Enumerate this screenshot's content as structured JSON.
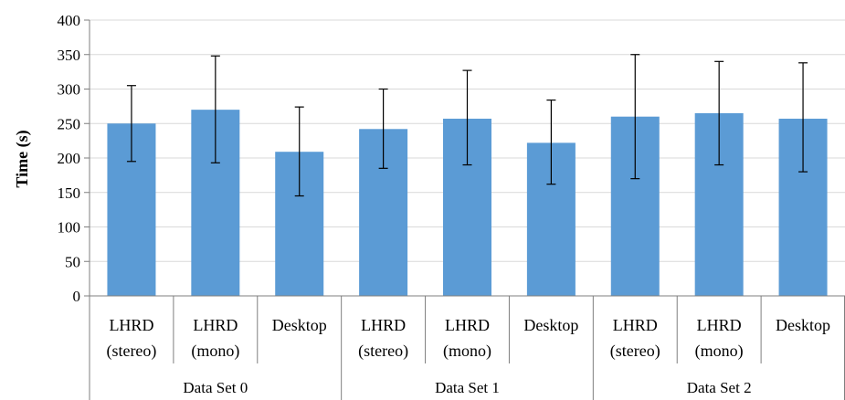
{
  "chart_data": {
    "type": "bar",
    "ylabel": "Time (s)",
    "ylim": [
      0,
      400
    ],
    "yticks": [
      0,
      50,
      100,
      150,
      200,
      250,
      300,
      350,
      400
    ],
    "grid": true,
    "bar_color": "#5B9BD5",
    "grid_color": "#D9D9D9",
    "categories": [
      {
        "line1": "LHRD",
        "line2": "(stereo)",
        "group": "Data Set 0",
        "value": 250,
        "err_low": 195,
        "err_high": 305
      },
      {
        "line1": "LHRD",
        "line2": "(mono)",
        "group": "Data Set 0",
        "value": 270,
        "err_low": 193,
        "err_high": 348
      },
      {
        "line1": "Desktop",
        "line2": "",
        "group": "Data Set 0",
        "value": 209,
        "err_low": 145,
        "err_high": 274
      },
      {
        "line1": "LHRD",
        "line2": "(stereo)",
        "group": "Data Set 1",
        "value": 242,
        "err_low": 185,
        "err_high": 300
      },
      {
        "line1": "LHRD",
        "line2": "(mono)",
        "group": "Data Set 1",
        "value": 257,
        "err_low": 190,
        "err_high": 327
      },
      {
        "line1": "Desktop",
        "line2": "",
        "group": "Data Set 1",
        "value": 222,
        "err_low": 162,
        "err_high": 284
      },
      {
        "line1": "LHRD",
        "line2": "(stereo)",
        "group": "Data Set 2",
        "value": 260,
        "err_low": 170,
        "err_high": 350
      },
      {
        "line1": "LHRD",
        "line2": "(mono)",
        "group": "Data Set 2",
        "value": 265,
        "err_low": 190,
        "err_high": 340
      },
      {
        "line1": "Desktop",
        "line2": "",
        "group": "Data Set 2",
        "value": 257,
        "err_low": 180,
        "err_high": 338
      }
    ],
    "groups": [
      "Data Set 0",
      "Data Set 1",
      "Data Set 2"
    ]
  }
}
